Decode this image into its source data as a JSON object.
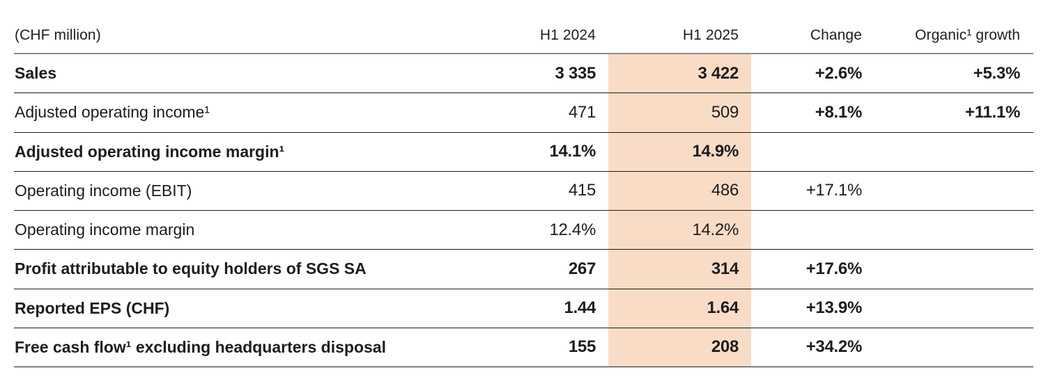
{
  "table": {
    "unit_label": "(CHF million)",
    "columns": [
      {
        "label": "H1 2024"
      },
      {
        "label": "H1 2025",
        "highlighted": true
      },
      {
        "label": "Change"
      },
      {
        "label": "Organic¹ growth"
      }
    ],
    "rows": [
      {
        "label": "Sales",
        "label_bold": true,
        "h1_2024": "3 335",
        "h1_2025": "3 422",
        "change": "+2.6%",
        "organic": "+5.3%",
        "values_bold": true,
        "change_bold": true
      },
      {
        "label": "Adjusted operating income¹",
        "label_bold": false,
        "h1_2024": "471",
        "h1_2025": "509",
        "change": "+8.1%",
        "organic": "+11.1%",
        "values_bold": false,
        "change_bold": true
      },
      {
        "label": "Adjusted operating income margin¹",
        "label_bold": true,
        "h1_2024": "14.1%",
        "h1_2025": "14.9%",
        "change": "",
        "organic": "",
        "values_bold": true,
        "change_bold": false
      },
      {
        "label": "Operating income (EBIT)",
        "label_bold": false,
        "h1_2024": "415",
        "h1_2025": "486",
        "change": "+17.1%",
        "organic": "",
        "values_bold": false,
        "change_bold": false
      },
      {
        "label": "Operating income margin",
        "label_bold": false,
        "h1_2024": "12.4%",
        "h1_2025": "14.2%",
        "change": "",
        "organic": "",
        "values_bold": false,
        "change_bold": false
      },
      {
        "label": "Profit attributable to equity holders of SGS SA",
        "label_bold": true,
        "h1_2024": "267",
        "h1_2025": "314",
        "change": "+17.6%",
        "organic": "",
        "values_bold": true,
        "change_bold": true
      },
      {
        "label": "Reported EPS (CHF)",
        "label_bold": true,
        "h1_2024": "1.44",
        "h1_2025": "1.64",
        "change": "+13.9%",
        "organic": "",
        "values_bold": true,
        "change_bold": true
      },
      {
        "label": "Free cash flow¹ excluding headquarters disposal",
        "label_bold": true,
        "h1_2024": "155",
        "h1_2025": "208",
        "change": "+34.2%",
        "organic": "",
        "values_bold": true,
        "change_bold": true
      }
    ],
    "colors": {
      "highlight": "#f9dcc6",
      "header_rule": "#8e8e8e",
      "row_rule": "#1d1d1b",
      "text": "#1d1d1b"
    }
  }
}
